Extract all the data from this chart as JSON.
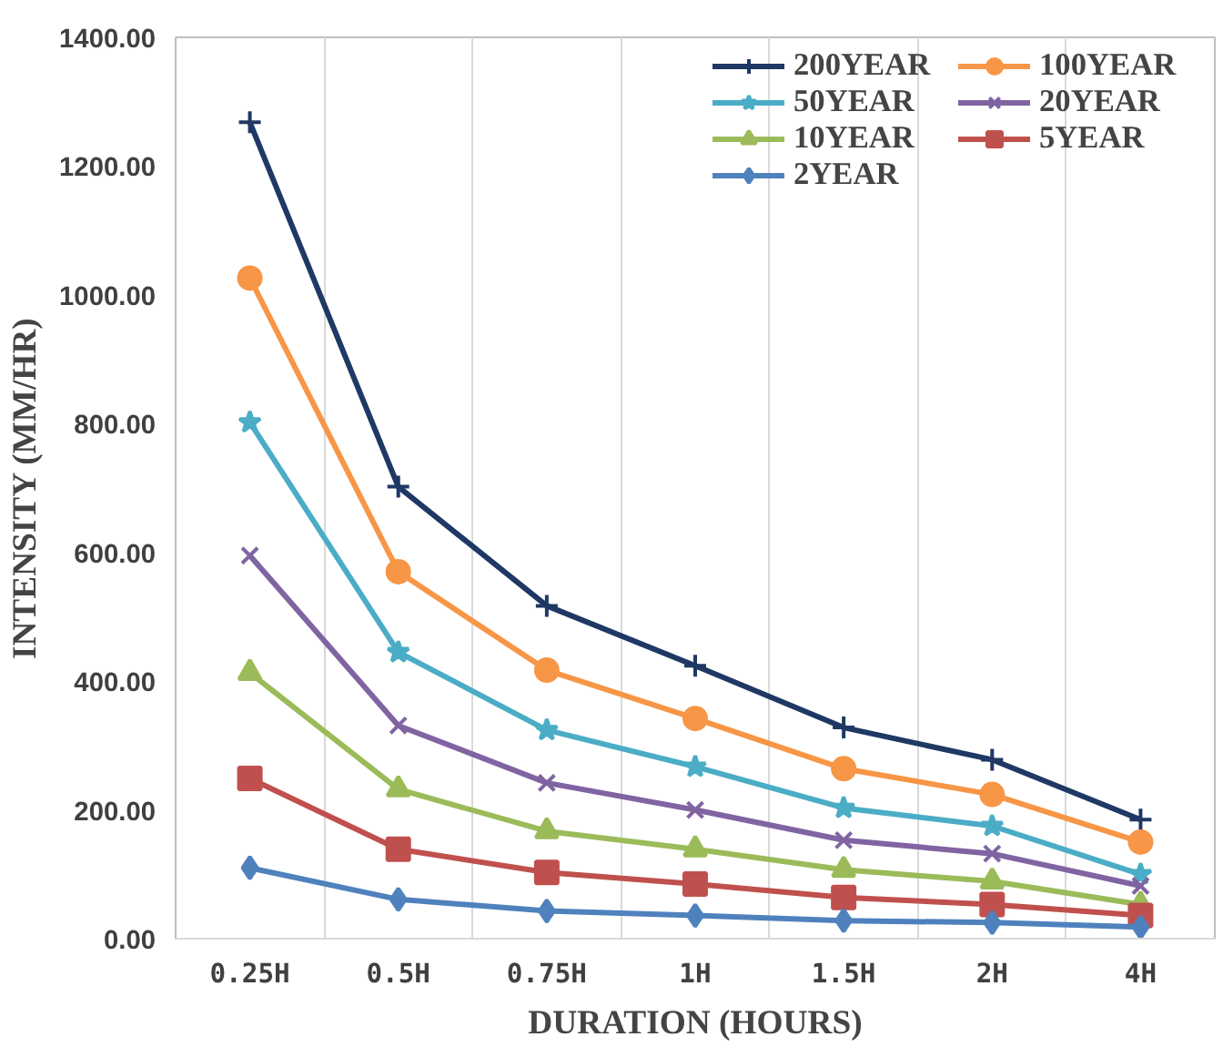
{
  "chart_data": {
    "type": "line",
    "xlabel": "DURATION (HOURS)",
    "ylabel": "INTENSITY (MM/HR)",
    "categories": [
      "0.25H",
      "0.5H",
      "0.75H",
      "1H",
      "1.5H",
      "2H",
      "4H"
    ],
    "ylim": [
      0,
      1400
    ],
    "yticks": [
      {
        "value": 0,
        "label": "0.00"
      },
      {
        "value": 200,
        "label": "200.00"
      },
      {
        "value": 400,
        "label": "400.00"
      },
      {
        "value": 600,
        "label": "600.00"
      },
      {
        "value": 800,
        "label": "800.00"
      },
      {
        "value": 1000,
        "label": "1000.00"
      },
      {
        "value": 1200,
        "label": "1200.00"
      },
      {
        "value": 1400,
        "label": "1400.00"
      }
    ],
    "grid": "x",
    "legend": "top right",
    "series": [
      {
        "name": "200YEAR",
        "color": "#1f3864",
        "marker": "cross",
        "values": [
          1268,
          702,
          517,
          424,
          328,
          278,
          185
        ]
      },
      {
        "name": "100YEAR",
        "color": "#f79646",
        "marker": "circle",
        "values": [
          1026,
          570,
          417,
          342,
          264,
          224,
          150
        ]
      },
      {
        "name": "50YEAR",
        "color": "#4bacc6",
        "marker": "star",
        "values": [
          802,
          445,
          324,
          267,
          203,
          175,
          100
        ]
      },
      {
        "name": "20YEAR",
        "color": "#8064a2",
        "marker": "x",
        "values": [
          595,
          331,
          242,
          200,
          153,
          132,
          82
        ]
      },
      {
        "name": "10YEAR",
        "color": "#9bbb59",
        "marker": "triangle",
        "values": [
          413,
          232,
          167,
          139,
          107,
          89,
          53
        ]
      },
      {
        "name": "5YEAR",
        "color": "#c0504d",
        "marker": "square",
        "values": [
          249,
          139,
          103,
          85,
          64,
          53,
          36
        ]
      },
      {
        "name": "2YEAR",
        "color": "#4f81bd",
        "marker": "diamond",
        "values": [
          110,
          61,
          43,
          36,
          28,
          25,
          18
        ]
      }
    ]
  }
}
